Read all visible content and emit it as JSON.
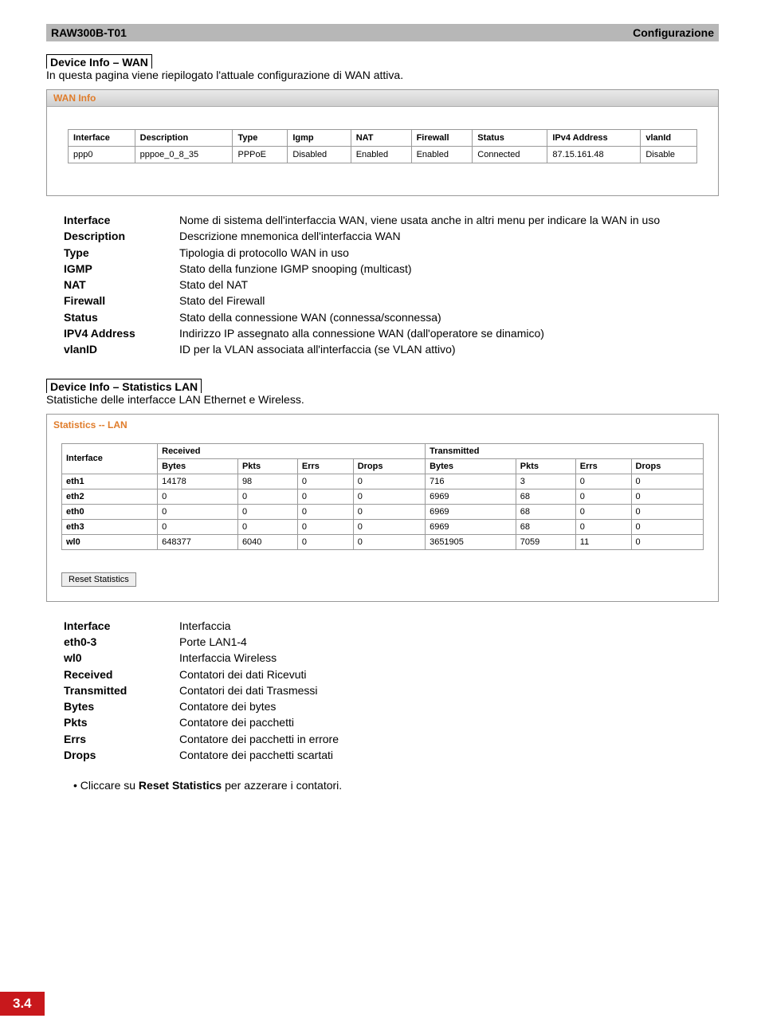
{
  "header": {
    "model": "RAW300B-T01",
    "section": "Configurazione"
  },
  "section_wan": {
    "title": "Device Info – WAN",
    "intro": "In questa pagina viene riepilogato l'attuale configurazione di WAN attiva."
  },
  "wan_screenshot": {
    "title_bar": "WAN Info",
    "title_color": "#e07c2a",
    "headers": [
      "Interface",
      "Description",
      "Type",
      "Igmp",
      "NAT",
      "Firewall",
      "Status",
      "IPv4 Address",
      "vlanId"
    ],
    "row": [
      "ppp0",
      "pppoe_0_8_35",
      "PPPoE",
      "Disabled",
      "Enabled",
      "Enabled",
      "Connected",
      "87.15.161.48",
      "Disable"
    ]
  },
  "wan_defs": [
    {
      "term": "Interface",
      "val": "Nome di sistema dell'interfaccia WAN, viene usata anche in altri menu per indicare la WAN in uso"
    },
    {
      "term": "Description",
      "val": "Descrizione mnemonica dell'interfaccia WAN"
    },
    {
      "term": "Type",
      "val": "Tipologia di protocollo WAN in uso"
    },
    {
      "term": "IGMP",
      "val": "Stato della funzione IGMP snooping (multicast)"
    },
    {
      "term": "NAT",
      "val": "Stato del NAT"
    },
    {
      "term": "Firewall",
      "val": "Stato del Firewall"
    },
    {
      "term": "Status",
      "val": "Stato della connessione WAN (connessa/sconnessa)"
    },
    {
      "term": "IPV4 Address",
      "val": "Indirizzo IP assegnato alla connessione WAN (dall'operatore se dinamico)"
    },
    {
      "term": "vlanID",
      "val": "ID per la VLAN associata all'interfaccia (se VLAN attivo)"
    }
  ],
  "section_stats": {
    "title": "Device Info – Statistics LAN",
    "intro": "Statistiche delle interfacce LAN Ethernet e Wireless."
  },
  "stats_screenshot": {
    "title": "Statistics -- LAN",
    "title_color": "#e07c2a",
    "group_headers": [
      "Interface",
      "Received",
      "Transmitted"
    ],
    "sub_headers": [
      "Bytes",
      "Pkts",
      "Errs",
      "Drops",
      "Bytes",
      "Pkts",
      "Errs",
      "Drops"
    ],
    "rows": [
      {
        "iface": "eth1",
        "cells": [
          "14178",
          "98",
          "0",
          "0",
          "716",
          "3",
          "0",
          "0"
        ]
      },
      {
        "iface": "eth2",
        "cells": [
          "0",
          "0",
          "0",
          "0",
          "6969",
          "68",
          "0",
          "0"
        ]
      },
      {
        "iface": "eth0",
        "cells": [
          "0",
          "0",
          "0",
          "0",
          "6969",
          "68",
          "0",
          "0"
        ]
      },
      {
        "iface": "eth3",
        "cells": [
          "0",
          "0",
          "0",
          "0",
          "6969",
          "68",
          "0",
          "0"
        ]
      },
      {
        "iface": "wl0",
        "cells": [
          "648377",
          "6040",
          "0",
          "0",
          "3651905",
          "7059",
          "11",
          "0"
        ]
      }
    ],
    "reset_button": "Reset Statistics"
  },
  "stats_defs": [
    {
      "term": "Interface",
      "val": "Interfaccia"
    },
    {
      "term": "eth0-3",
      "val": "Porte LAN1-4"
    },
    {
      "term": "wl0",
      "val": "Interfaccia Wireless"
    },
    {
      "term": "Received",
      "val": "Contatori dei dati Ricevuti"
    },
    {
      "term": "Transmitted",
      "val": "Contatori dei dati Trasmessi"
    },
    {
      "term": "Bytes",
      "val": "Contatore dei bytes"
    },
    {
      "term": "Pkts",
      "val": "Contatore dei pacchetti"
    },
    {
      "term": "Errs",
      "val": "Contatore dei pacchetti in errore"
    },
    {
      "term": "Drops",
      "val": "Contatore dei pacchetti scartati"
    }
  ],
  "bullet": {
    "prefix": "•  Cliccare su ",
    "bold": "Reset Statistics",
    "suffix": " per azzerare i contatori."
  },
  "page_number": "3.4",
  "colors": {
    "header_bg": "#b7b7b7",
    "accent_red": "#c8181c",
    "border": "#999999",
    "screenshot_accent": "#e07c2a"
  }
}
